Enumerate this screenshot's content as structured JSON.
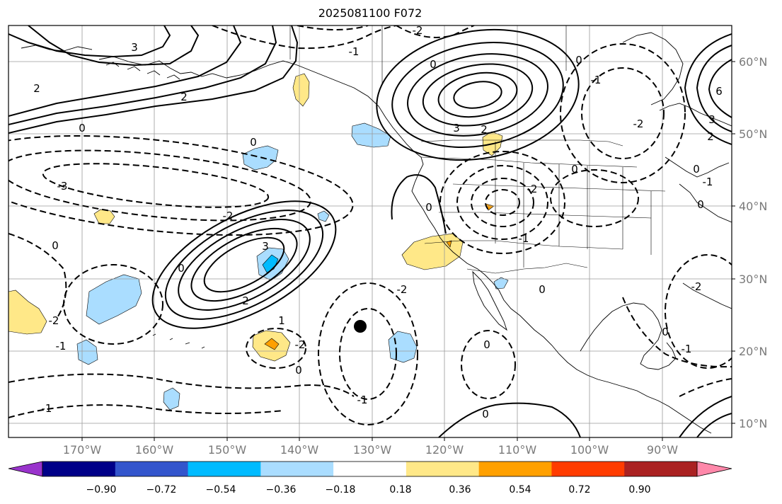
{
  "title": "2025081100 F072",
  "lat_labels": [
    "60°N",
    "50°N",
    "40°N",
    "30°N",
    "20°N",
    "10°N"
  ],
  "lon_labels": [
    "170°W",
    "160°W",
    "150°W",
    "140°W",
    "130°W",
    "120°W",
    "110°W",
    "100°W",
    "90°W"
  ],
  "colorbar": {
    "colors": [
      "#9933cc",
      "#000088",
      "#3355cc",
      "#00bbff",
      "#aaddff",
      "#ffffff",
      "#ffe888",
      "#ffa000",
      "#ff3c00",
      "#aa2222",
      "#ff88aa"
    ],
    "ticks": [
      "−0.90",
      "−0.72",
      "−0.54",
      "−0.36",
      "−0.18",
      "0.18",
      "0.36",
      "0.54",
      "0.72",
      "0.90"
    ]
  },
  "contour_labels": [
    {
      "text": "-3",
      "style": "dashed"
    },
    {
      "text": "-2",
      "style": "dashed"
    },
    {
      "text": "-1",
      "style": "dashed"
    },
    {
      "text": "0",
      "style": "solid"
    },
    {
      "text": "1",
      "style": "solid"
    },
    {
      "text": "2",
      "style": "solid"
    },
    {
      "text": "3",
      "style": "solid"
    },
    {
      "text": "6",
      "style": "solid"
    }
  ],
  "marker": {
    "type": "dot",
    "color": "#000000"
  }
}
